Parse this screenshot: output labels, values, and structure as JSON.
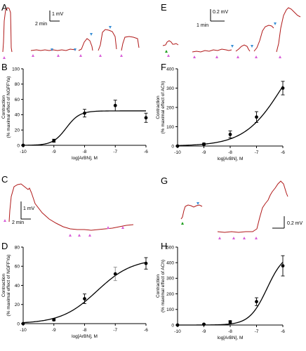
{
  "figure": {
    "panel_letters": {
      "A": "A",
      "B": "B",
      "C": "C",
      "D": "D",
      "E": "E",
      "F": "F",
      "G": "G",
      "H": "H"
    },
    "scale_bars": {
      "A": {
        "amp": "1 mV",
        "time": "2 min"
      },
      "C": {
        "amp": "1 mV",
        "time": "2 min"
      },
      "E": {
        "amp": "0.2 mV",
        "time": "1 min"
      },
      "G": {
        "amp": "0.2 mV",
        "time": ""
      }
    }
  },
  "colors": {
    "trace": "#b01818",
    "curve": "#000000",
    "points": "#000000",
    "error_gray": "#8a8a8a",
    "magenta_marker": "#d95fd9",
    "blue_marker": "#3a8fd6",
    "green_marker": "#1e9e1e",
    "dotted_baseline": "#000000"
  },
  "chart_data": [
    {
      "panel": "B",
      "type": "scatter",
      "fit": "sigmoid",
      "xlabel": "log[ArBN], M",
      "ylabel": [
        "Contraction",
        "(% maximal effect of NGFFYa)"
      ],
      "xlim": [
        -10,
        -6
      ],
      "ylim": [
        0,
        100
      ],
      "xticks": [
        -10,
        -9,
        -8,
        -7,
        -6
      ],
      "yticks": [
        0,
        20,
        40,
        60,
        80,
        100
      ],
      "x": [
        -10,
        -9,
        -8,
        -7,
        -6
      ],
      "y": [
        0,
        6,
        42,
        52,
        36
      ],
      "err": [
        0,
        2,
        5,
        7,
        6
      ],
      "fit_params": {
        "bottom": 0,
        "top": 45,
        "logEC50": -8.6,
        "hill": 2.0
      },
      "baseline": 0
    },
    {
      "panel": "D",
      "type": "scatter",
      "fit": "sigmoid",
      "xlabel": "log[ArBN], M",
      "ylabel": [
        "Contraction",
        "(% maximal effect of NGFFYa)"
      ],
      "xlim": [
        -10,
        -6
      ],
      "ylim": [
        0,
        80
      ],
      "xticks": [
        -10,
        -9,
        -8,
        -7,
        -6
      ],
      "yticks": [
        0,
        20,
        40,
        60,
        80
      ],
      "x": [
        -10,
        -9,
        -8,
        -7,
        -6
      ],
      "y": [
        0,
        4,
        26,
        52,
        63
      ],
      "err": [
        0,
        1,
        5,
        7,
        6
      ],
      "fit_params": {
        "bottom": 0,
        "top": 68,
        "logEC50": -7.6,
        "hill": 0.75
      },
      "baseline": 0
    },
    {
      "panel": "F",
      "type": "scatter",
      "fit": "sigmoid",
      "xlabel": "log[ArBN], M",
      "ylabel": [
        "Contraction",
        "(% maximal effect of ACh)"
      ],
      "xlim": [
        -10,
        -6
      ],
      "ylim": [
        0,
        400
      ],
      "xticks": [
        -10,
        -9,
        -8,
        -7,
        -6
      ],
      "yticks": [
        0,
        100,
        200,
        300,
        400
      ],
      "x": [
        -10,
        -9,
        -8,
        -7,
        -6
      ],
      "y": [
        0,
        10,
        60,
        150,
        300
      ],
      "err": [
        0,
        5,
        18,
        28,
        35
      ],
      "fit_params": {
        "bottom": 0,
        "top": 620,
        "logEC50": -6.0,
        "hill": 0.6
      },
      "baseline": 0
    },
    {
      "panel": "H",
      "type": "scatter",
      "fit": "sigmoid",
      "xlabel": "log[ArBN], M",
      "ylabel": [
        "Contraction",
        "(% maximal effect of ACh)"
      ],
      "xlim": [
        -10,
        -6
      ],
      "ylim": [
        0,
        500
      ],
      "xticks": [
        -10,
        -9,
        -8,
        -7,
        -6
      ],
      "yticks": [
        0,
        100,
        200,
        300,
        400,
        500
      ],
      "x": [
        -10,
        -9,
        -8,
        -7,
        -6
      ],
      "y": [
        0,
        5,
        20,
        150,
        380
      ],
      "err": [
        0,
        3,
        8,
        25,
        65
      ],
      "fit_params": {
        "bottom": 0,
        "top": 470,
        "logEC50": -6.6,
        "hill": 1.3
      },
      "baseline": 0
    }
  ]
}
